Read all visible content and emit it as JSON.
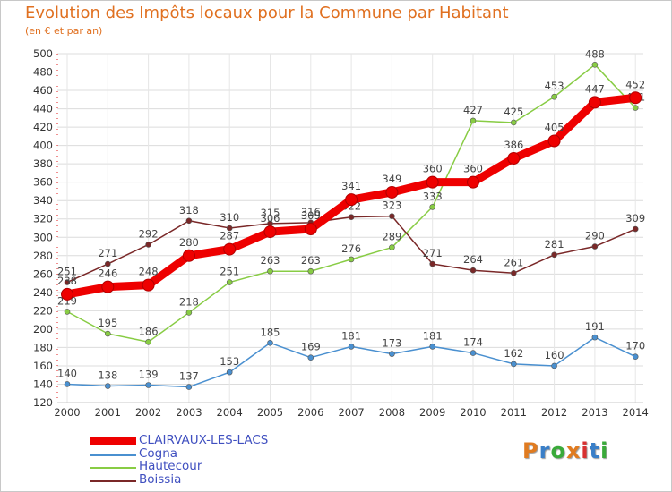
{
  "header": {
    "title": "Evolution des Impôts locaux pour la Commune par Habitant",
    "subtitle": "(en € et par an)"
  },
  "logo": {
    "text": "Proxiti",
    "colors": [
      "#e07b20",
      "#3a7fc8",
      "#3aaa3a",
      "#e07b20",
      "#d83030",
      "#3a7fc8",
      "#3aaa3a"
    ]
  },
  "chart_data": {
    "type": "line",
    "x": [
      2000,
      2001,
      2002,
      2003,
      2004,
      2005,
      2006,
      2007,
      2008,
      2009,
      2010,
      2011,
      2012,
      2013,
      2014
    ],
    "ylim": [
      120,
      500
    ],
    "yticks": [
      120,
      140,
      160,
      180,
      200,
      220,
      240,
      260,
      280,
      300,
      320,
      340,
      360,
      380,
      400,
      420,
      440,
      460,
      480,
      500
    ],
    "grid": true,
    "legend_placement": "bottom-left",
    "series": [
      {
        "name": "CLAIRVAUX-LES-LACS",
        "color": "#ee0000",
        "highlight": true,
        "values": [
          238,
          246,
          248,
          280,
          287,
          306,
          309,
          341,
          349,
          360,
          360,
          386,
          405,
          447,
          452
        ]
      },
      {
        "name": "Cogna",
        "color": "#4a90d0",
        "values": [
          140,
          138,
          139,
          137,
          153,
          185,
          169,
          181,
          173,
          181,
          174,
          162,
          160,
          191,
          170
        ]
      },
      {
        "name": "Hautecour",
        "color": "#88cc44",
        "values": [
          219,
          195,
          186,
          218,
          251,
          263,
          263,
          276,
          289,
          333,
          427,
          425,
          453,
          488,
          441
        ]
      },
      {
        "name": "Boissia",
        "color": "#7a2828",
        "values": [
          251,
          271,
          292,
          318,
          310,
          315,
          316,
          322,
          323,
          271,
          264,
          261,
          281,
          290,
          309
        ]
      }
    ]
  }
}
